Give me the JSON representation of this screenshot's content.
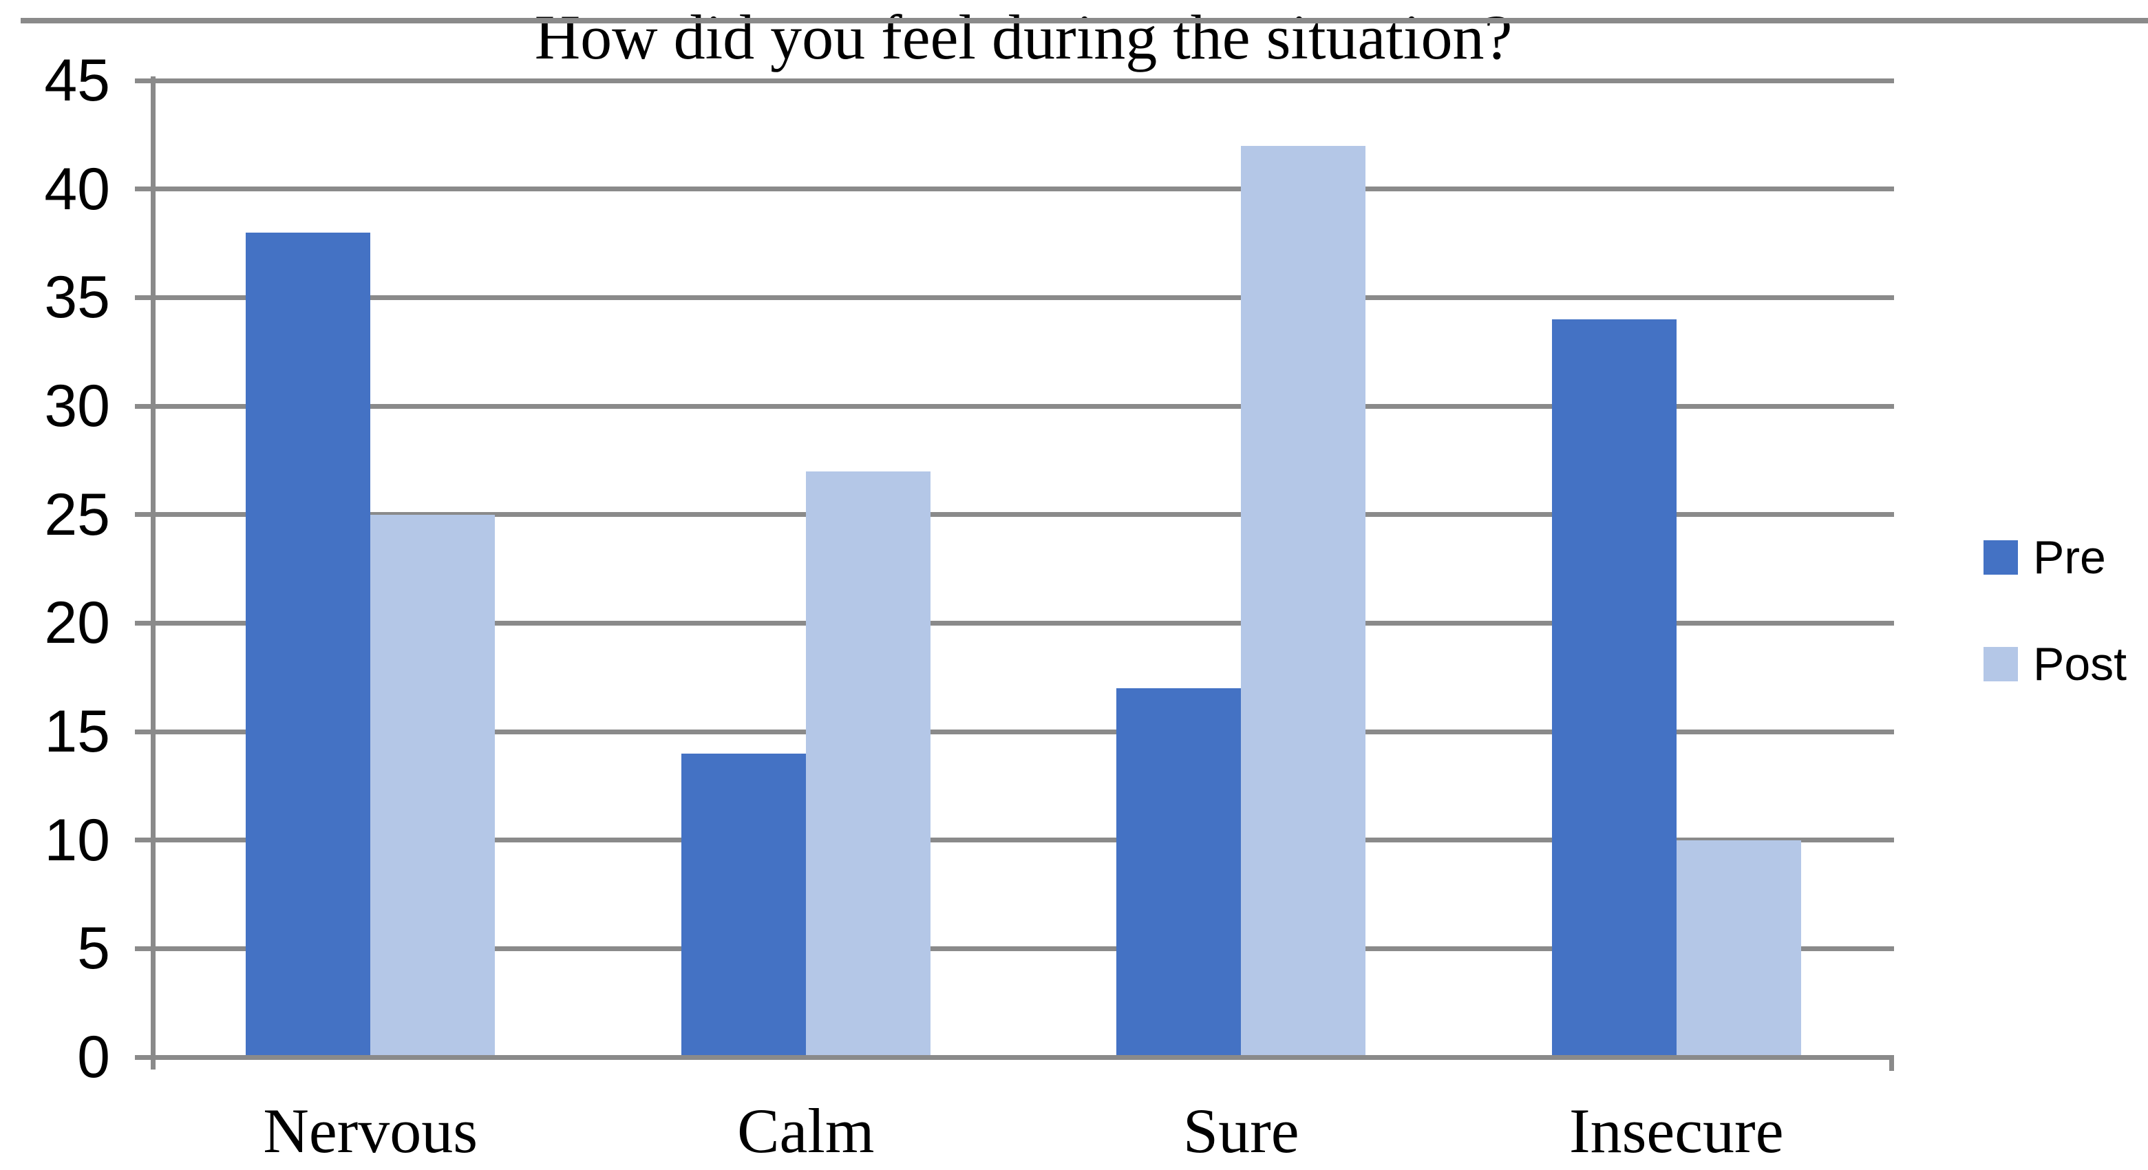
{
  "chart_data": {
    "type": "bar",
    "title": "How did you feel during the situation?",
    "categories": [
      "Nervous",
      "Calm",
      "Sure",
      "Insecure"
    ],
    "series": [
      {
        "name": "Pre",
        "color": "#4472c4",
        "values": [
          38,
          14,
          17,
          34
        ]
      },
      {
        "name": "Post",
        "color": "#b4c7e7",
        "values": [
          25,
          27,
          42,
          10
        ]
      }
    ],
    "ylim": [
      0,
      45
    ],
    "ytick_step": 5,
    "yticks": [
      45,
      40,
      35,
      30,
      25,
      20,
      15,
      10,
      5,
      0
    ],
    "xlabel": "",
    "ylabel": "",
    "grid": "horizontal",
    "grid_color": "#8a8a8a",
    "legend_position": "right"
  }
}
